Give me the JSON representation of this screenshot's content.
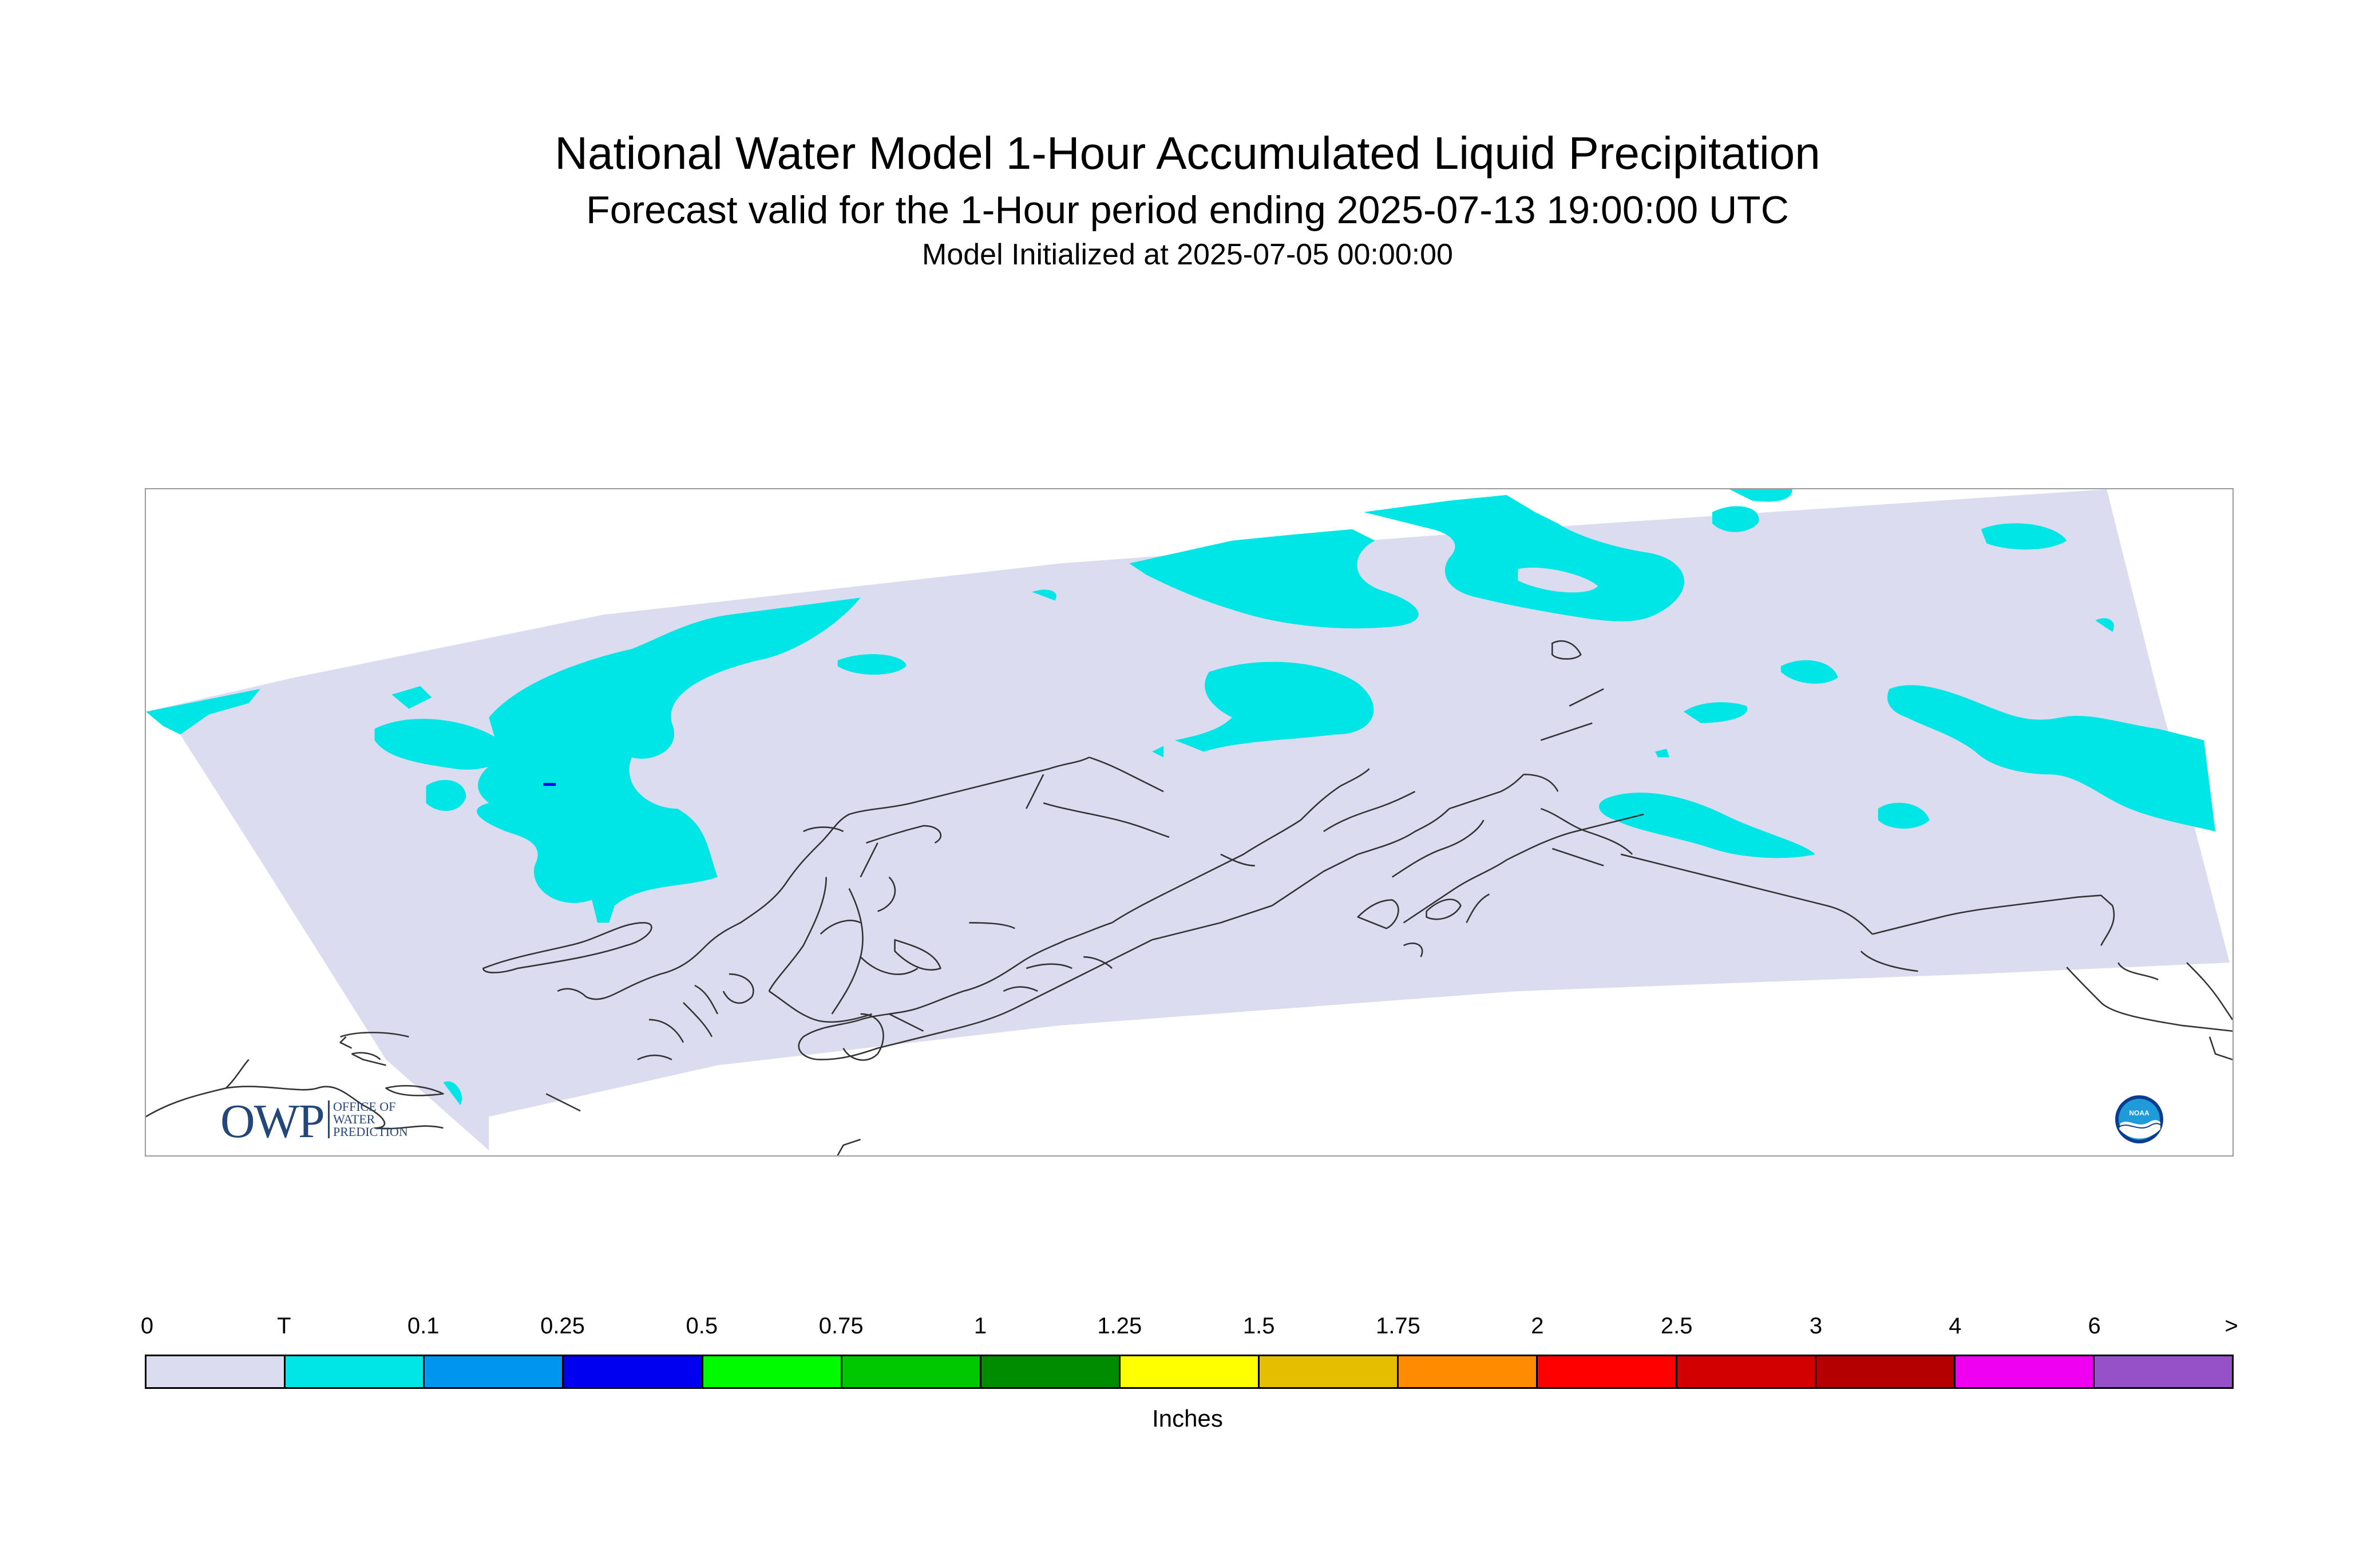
{
  "title": "National Water Model 1-Hour Accumulated Liquid Precipitation",
  "subtitle": "Forecast valid for the 1-Hour period ending 2025-07-13 19:00:00 UTC",
  "init_line": "Model Initialized at 2025-07-05 00:00:00",
  "owp_logo": {
    "letters": "OWP",
    "line1": "OFFICE OF",
    "line2": "WATER",
    "line3": "PREDICTION"
  },
  "noaa_logo": {
    "text": "NOAA"
  },
  "legend": {
    "units": "Inches",
    "labels": [
      "0",
      "T",
      "0.1",
      "0.25",
      "0.5",
      "0.75",
      "1",
      "1.25",
      "1.5",
      "1.75",
      "2",
      "2.5",
      "3",
      "4",
      "6",
      ">"
    ],
    "colors": [
      "#dcdcf0",
      "#00e6e6",
      "#0096f0",
      "#0000f0",
      "#00fa00",
      "#00c800",
      "#008c00",
      "#ffff00",
      "#e6be00",
      "#ff8c00",
      "#ff0000",
      "#d20000",
      "#b40000",
      "#f000f0",
      "#9650c8"
    ]
  },
  "colors": {
    "no_data": "#ffffff",
    "domain": "#dcdcf0",
    "trace": "#00e6e6",
    "coast": "#333333"
  }
}
